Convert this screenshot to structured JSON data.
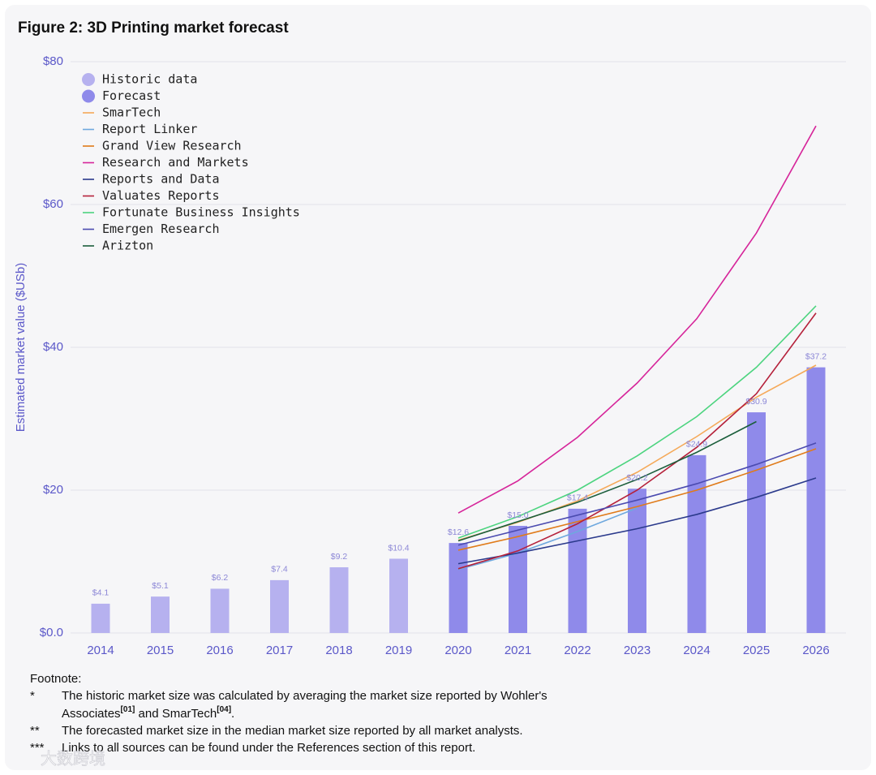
{
  "chart_data": {
    "type": "bar",
    "title": "Figure 2: 3D Printing market forecast",
    "ylabel": "Estimated market value ($USb)",
    "categories": [
      "2014",
      "2015",
      "2016",
      "2017",
      "2018",
      "2019",
      "2020",
      "2021",
      "2022",
      "2023",
      "2024",
      "2025",
      "2026"
    ],
    "ylim": [
      0,
      80
    ],
    "yticks": [
      {
        "value": 0,
        "label": "$0.0"
      },
      {
        "value": 20,
        "label": "$20"
      },
      {
        "value": 40,
        "label": "$40"
      },
      {
        "value": 60,
        "label": "$60"
      },
      {
        "value": 80,
        "label": "$80"
      }
    ],
    "grid": true,
    "legend": "upper left",
    "series": [
      {
        "name": "Historic data",
        "type": "bar",
        "color": "#b6b1ef",
        "values": [
          4.1,
          5.1,
          6.2,
          7.4,
          9.2,
          10.4,
          null,
          null,
          null,
          null,
          null,
          null,
          null
        ],
        "value_labels": [
          "$4.1",
          "$5.1",
          "$6.2",
          "$7.4",
          "$9.2",
          "$10.4",
          null,
          null,
          null,
          null,
          null,
          null,
          null
        ]
      },
      {
        "name": "Forecast",
        "type": "bar",
        "color": "#8f8aea",
        "values": [
          null,
          null,
          null,
          null,
          null,
          null,
          12.6,
          15.0,
          17.4,
          20.2,
          24.9,
          30.9,
          37.2
        ],
        "value_labels": [
          null,
          null,
          null,
          null,
          null,
          null,
          "$12.6",
          "$15.0",
          "$17.4",
          "$20.2",
          "$24.9",
          "$30.9",
          "$37.2"
        ]
      },
      {
        "name": "SmarTech",
        "type": "line",
        "color": "#f5a959",
        "values": [
          null,
          null,
          null,
          null,
          null,
          null,
          13.0,
          15.5,
          18.5,
          22.5,
          27.5,
          33.0,
          37.5
        ]
      },
      {
        "name": "Report Linker",
        "type": "line",
        "color": "#6fa8de",
        "values": [
          null,
          null,
          null,
          null,
          null,
          null,
          8.9,
          11.2,
          14.2,
          17.5,
          null,
          null,
          null
        ]
      },
      {
        "name": "Grand View Research",
        "type": "line",
        "color": "#e07b1a",
        "values": [
          null,
          null,
          null,
          null,
          null,
          null,
          11.6,
          13.5,
          15.6,
          17.7,
          20.0,
          22.8,
          25.8
        ]
      },
      {
        "name": "Research and Markets",
        "type": "line",
        "color": "#d6259a",
        "values": [
          null,
          null,
          null,
          null,
          null,
          null,
          16.8,
          21.3,
          27.4,
          35.0,
          44.0,
          56.0,
          71.0
        ]
      },
      {
        "name": "Reports and Data",
        "type": "line",
        "color": "#2b3a8c",
        "values": [
          null,
          null,
          null,
          null,
          null,
          null,
          9.7,
          11.2,
          12.9,
          14.6,
          16.6,
          19.0,
          21.7
        ]
      },
      {
        "name": "Valuates Reports",
        "type": "line",
        "color": "#b5213b",
        "values": [
          null,
          null,
          null,
          null,
          null,
          null,
          9.0,
          11.5,
          15.3,
          20.0,
          26.0,
          33.5,
          44.8
        ]
      },
      {
        "name": "Fortunate Business Insights",
        "type": "line",
        "color": "#4cd47f",
        "values": [
          null,
          null,
          null,
          null,
          null,
          null,
          13.3,
          16.3,
          20.0,
          24.8,
          30.3,
          37.2,
          45.8
        ]
      },
      {
        "name": "Emergen Research",
        "type": "line",
        "color": "#4b4bb0",
        "values": [
          null,
          null,
          null,
          null,
          null,
          null,
          12.3,
          14.4,
          16.5,
          18.6,
          20.9,
          23.6,
          26.6
        ]
      },
      {
        "name": "Arizton",
        "type": "line",
        "color": "#1b5e3b",
        "values": [
          null,
          null,
          null,
          null,
          null,
          null,
          12.9,
          15.6,
          18.3,
          21.5,
          25.3,
          29.6,
          null
        ]
      }
    ]
  },
  "footnote": {
    "title": "Footnote:",
    "notes": [
      {
        "marker": "*",
        "line1": "The historic market size was calculated by averaging the market size reported by Wohler's",
        "line2": [
          "Associates",
          "[01]",
          " and SmarTech",
          "[04]",
          "."
        ]
      },
      {
        "marker": "**",
        "line1": "The forecasted market size in the median market size reported by all market analysts."
      },
      {
        "marker": "***",
        "line1": "Links to all sources can be found under the References section of this report."
      }
    ]
  },
  "watermark": "大数跨境"
}
